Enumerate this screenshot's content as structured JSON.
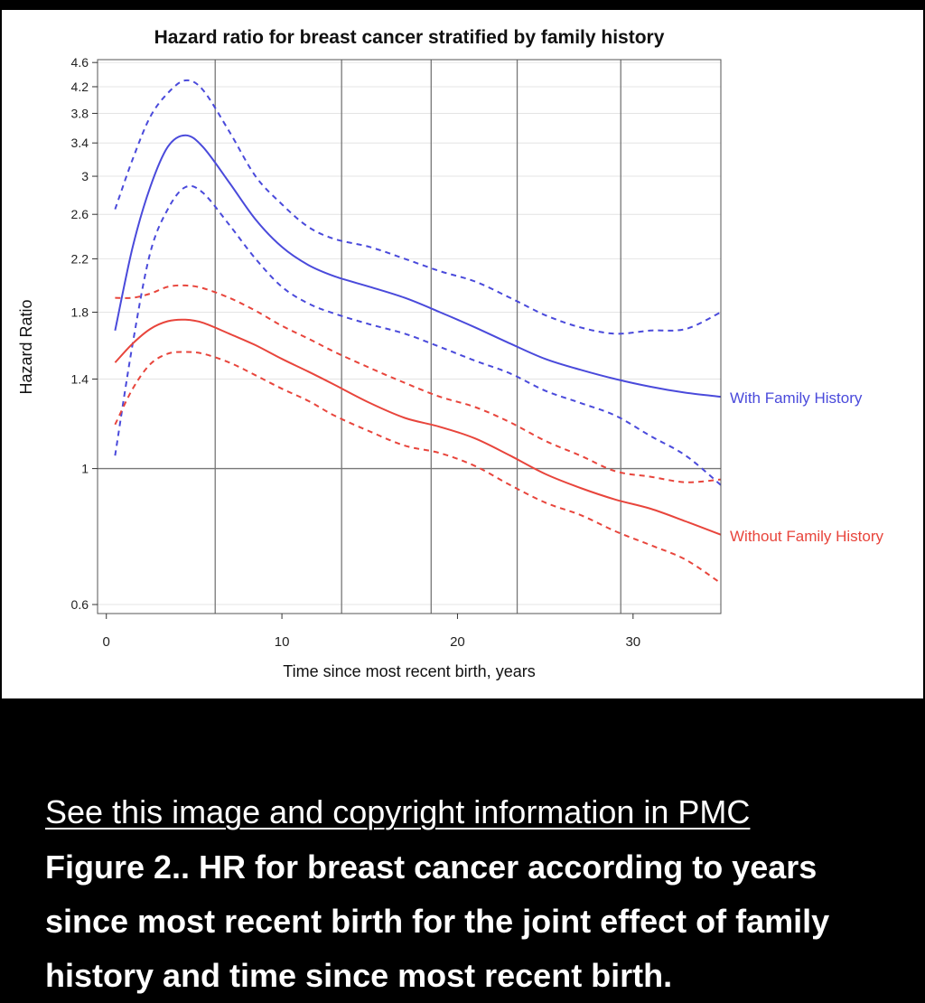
{
  "chart_data": {
    "type": "line",
    "title": "Hazard ratio for breast cancer stratified by family history",
    "xlabel": "Time since most recent birth, years",
    "ylabel": "Hazard Ratio",
    "xlim": [
      -0.5,
      35
    ],
    "ylim": [
      0.58,
      4.65
    ],
    "y_scale": "log",
    "x_ticks": [
      0,
      10,
      20,
      30
    ],
    "y_ticks": [
      "0.6",
      "1",
      "1.4",
      "1.8",
      "2.2",
      "2.6",
      "3",
      "3.4",
      "3.8",
      "4.2",
      "4.6"
    ],
    "reference_line_y": 1,
    "vertical_gridlines_x": [
      6.2,
      13.4,
      18.5,
      23.4,
      29.3
    ],
    "legend_placement": "right, labels at line ends",
    "series": [
      {
        "name": "With Family History",
        "color": "#4a4adb",
        "x": [
          0.5,
          1.5,
          2.5,
          3.5,
          4.5,
          5.5,
          7,
          8.5,
          10,
          11.5,
          13,
          15,
          17,
          19,
          21,
          23,
          25,
          27,
          29,
          31,
          33,
          35
        ],
        "estimate": [
          1.68,
          2.3,
          2.88,
          3.35,
          3.5,
          3.35,
          2.93,
          2.55,
          2.3,
          2.15,
          2.06,
          1.98,
          1.9,
          1.8,
          1.7,
          1.6,
          1.51,
          1.45,
          1.4,
          1.36,
          1.33,
          1.31
        ],
        "upper": [
          2.65,
          3.2,
          3.75,
          4.1,
          4.3,
          4.15,
          3.55,
          3.0,
          2.7,
          2.48,
          2.37,
          2.3,
          2.2,
          2.1,
          2.02,
          1.9,
          1.78,
          1.7,
          1.66,
          1.68,
          1.69,
          1.8
        ],
        "lower": [
          1.05,
          1.6,
          2.25,
          2.65,
          2.88,
          2.82,
          2.5,
          2.2,
          1.98,
          1.86,
          1.79,
          1.72,
          1.66,
          1.58,
          1.5,
          1.43,
          1.34,
          1.28,
          1.22,
          1.13,
          1.05,
          0.94
        ]
      },
      {
        "name": "Without Family History",
        "color": "#e8453c",
        "x": [
          0.5,
          1.5,
          2.5,
          3.5,
          4.5,
          5.5,
          7,
          8.5,
          10,
          11.5,
          13,
          15,
          17,
          19,
          21,
          23,
          25,
          27,
          29,
          31,
          33,
          35
        ],
        "estimate": [
          1.49,
          1.6,
          1.69,
          1.74,
          1.75,
          1.73,
          1.66,
          1.59,
          1.51,
          1.44,
          1.37,
          1.28,
          1.21,
          1.17,
          1.12,
          1.05,
          0.98,
          0.93,
          0.89,
          0.86,
          0.82,
          0.78
        ],
        "upper": [
          1.9,
          1.9,
          1.93,
          1.98,
          1.99,
          1.97,
          1.9,
          1.81,
          1.71,
          1.63,
          1.55,
          1.46,
          1.38,
          1.31,
          1.26,
          1.19,
          1.11,
          1.05,
          0.99,
          0.97,
          0.95,
          0.96
        ],
        "lower": [
          1.18,
          1.35,
          1.48,
          1.54,
          1.55,
          1.54,
          1.49,
          1.42,
          1.35,
          1.29,
          1.22,
          1.15,
          1.09,
          1.06,
          1.01,
          0.94,
          0.88,
          0.84,
          0.79,
          0.75,
          0.71,
          0.65
        ]
      }
    ]
  },
  "footer": {
    "link_text": "See this image and copyright information in PMC",
    "caption": "Figure 2.. HR for breast cancer according to years since most recent birth for the joint effect of family history and time since most recent birth."
  }
}
